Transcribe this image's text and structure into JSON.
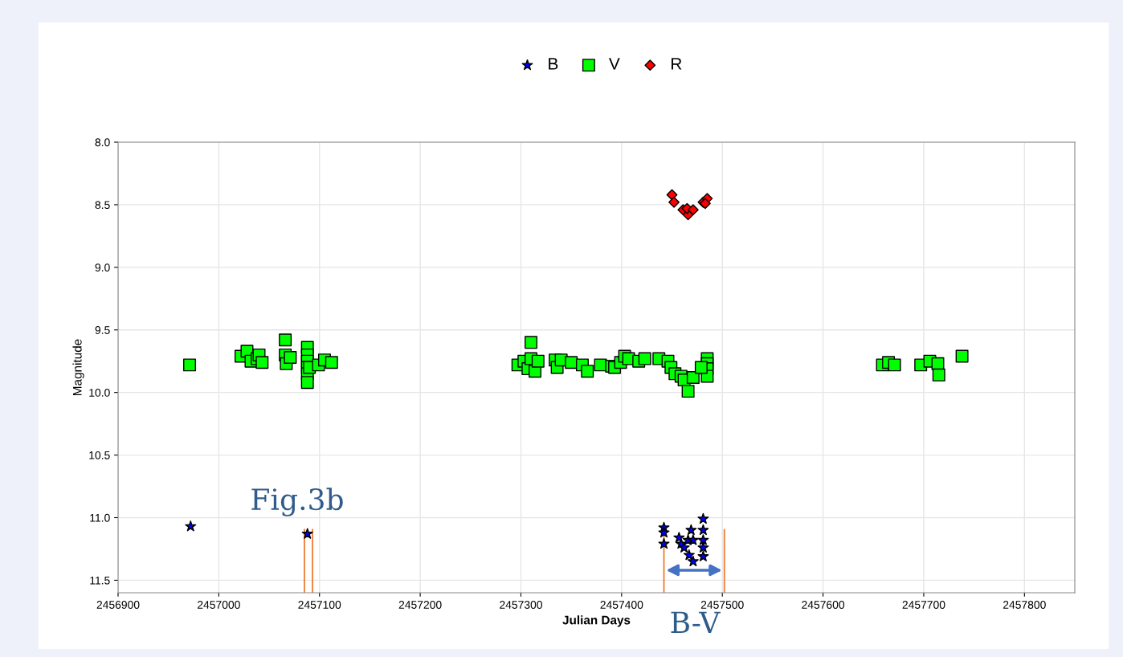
{
  "chart_data": {
    "type": "scatter",
    "xlabel": "Julian Days",
    "ylabel": "Magnitude",
    "xlim": [
      2456900,
      2457850
    ],
    "ylim": [
      11.6,
      8.0
    ],
    "xticks": [
      2456900,
      2457000,
      2457100,
      2457200,
      2457300,
      2457400,
      2457500,
      2457600,
      2457700,
      2457800
    ],
    "yticks": [
      {
        "value": 8,
        "label": "8.0"
      },
      8.5,
      {
        "value": 9,
        "label": "9.0"
      },
      9.5,
      {
        "value": 10,
        "label": "10.0"
      },
      10.5,
      {
        "value": 11,
        "label": "11.0"
      },
      11.5
    ],
    "grid": true,
    "legend": "top",
    "series": [
      {
        "name": "B",
        "color": "#0000ff",
        "marker": "star",
        "x": [
          2456972,
          2457088,
          2457442,
          2457442,
          2457442,
          2457457,
          2457459,
          2457462,
          2457466,
          2457467,
          2457471,
          2457469,
          2457471,
          2457481,
          2457481,
          2457481,
          2457481,
          2457481
        ],
        "values": [
          11.07,
          11.13,
          11.08,
          11.12,
          11.21,
          11.16,
          11.21,
          11.24,
          11.18,
          11.3,
          11.35,
          11.1,
          11.18,
          11.01,
          11.1,
          11.18,
          11.24,
          11.31
        ]
      },
      {
        "name": "V",
        "color": "#00ff00",
        "marker": "square",
        "x": [
          2456971,
          2457022,
          2457028,
          2457032,
          2457038,
          2457040,
          2457043,
          2457066,
          2457066,
          2457067,
          2457071,
          2457088,
          2457088,
          2457088,
          2457088,
          2457088,
          2457088,
          2457090,
          2457099,
          2457105,
          2457112,
          2457310,
          2457297,
          2457303,
          2457307,
          2457310,
          2457314,
          2457317,
          2457334,
          2457336,
          2457340,
          2457350,
          2457361,
          2457366,
          2457379,
          2457390,
          2457393,
          2457399,
          2457403,
          2457407,
          2457417,
          2457423,
          2457437,
          2457446,
          2457449,
          2457453,
          2457459,
          2457462,
          2457466,
          2457471,
          2457485,
          2457485,
          2457485,
          2457485,
          2457479,
          2457659,
          2457665,
          2457671,
          2457697,
          2457706,
          2457714,
          2457715,
          2457738
        ],
        "values": [
          9.78,
          9.71,
          9.67,
          9.75,
          9.73,
          9.7,
          9.76,
          9.58,
          9.7,
          9.77,
          9.72,
          9.64,
          9.7,
          9.75,
          9.8,
          9.85,
          9.92,
          9.8,
          9.78,
          9.74,
          9.76,
          9.6,
          9.78,
          9.75,
          9.81,
          9.73,
          9.83,
          9.75,
          9.74,
          9.8,
          9.74,
          9.76,
          9.78,
          9.83,
          9.78,
          9.79,
          9.8,
          9.76,
          9.71,
          9.73,
          9.75,
          9.73,
          9.73,
          9.75,
          9.8,
          9.85,
          9.87,
          9.9,
          9.99,
          9.88,
          9.73,
          9.77,
          9.81,
          9.87,
          9.8,
          9.78,
          9.76,
          9.78,
          9.78,
          9.75,
          9.77,
          9.86,
          9.71
        ]
      },
      {
        "name": "R",
        "color": "#ff0000",
        "marker": "diamond",
        "x": [
          2457450,
          2457452,
          2457461,
          2457466,
          2457465,
          2457471,
          2457481,
          2457485,
          2457483
        ],
        "values": [
          8.42,
          8.48,
          8.54,
          8.58,
          8.53,
          8.54,
          8.48,
          8.45,
          8.49
        ]
      }
    ],
    "ref_lines": [
      {
        "axis": "x",
        "value": 2457085,
        "color": "#ed7d31"
      },
      {
        "axis": "x",
        "value": 2457093,
        "color": "#ed7d31"
      },
      {
        "axis": "x",
        "value": 2457442,
        "color": "#ed7d31"
      },
      {
        "axis": "x",
        "value": 2457502,
        "color": "#ed7d31"
      }
    ],
    "annotations": [
      "Fig.3b",
      "B-V"
    ]
  }
}
